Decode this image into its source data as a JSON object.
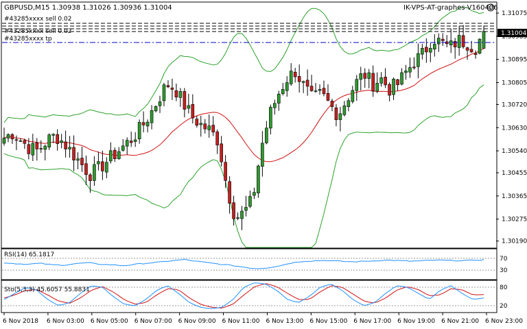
{
  "window": {
    "symbol_info": "GBPUSD,M15  1.30938 1.31026 1.30936 1.31004",
    "expert_name": "IK-VPS-AT-graphes-V160406",
    "smiley_icon": "smiley-face-icon"
  },
  "order_labels": [
    "#43285xxxx sell 0.02",
    "#43285xxxx tp"
  ],
  "price_tag": "1.31004",
  "colors": {
    "bull": "#2f9a2f",
    "bear": "#c62020",
    "ma_red": "#d01010",
    "bands_green": "#2aa12a",
    "rsi_line": "#1e90ff",
    "sto_main": "#1e90ff",
    "sto_signal": "#d01010",
    "order_line": "#0000aa",
    "tp_line": "#0000cc"
  },
  "rsi": {
    "label": "RSI(14) 65.1817",
    "levels": [
      70,
      30
    ],
    "value": 65.1817
  },
  "stochastic": {
    "label": "Sto(5,3,3) 45.6057 55.8831",
    "levels": [
      80,
      20
    ],
    "main": 45.6057,
    "signal": 55.8831
  },
  "chart_data": {
    "type": "candlestick",
    "timeframe": "M15",
    "y_ticks": [
      "1.31075",
      "1.30985",
      "1.30895",
      "1.30805",
      "1.30720",
      "1.30630",
      "1.30540",
      "1.30455",
      "1.30365",
      "1.30275",
      "1.30190"
    ],
    "ylim": [
      1.30165,
      1.31115
    ],
    "x_ticks": [
      "6 Nov 2018",
      "6 Nov 03:00",
      "6 Nov 05:00",
      "6 Nov 07:00",
      "6 Nov 09:00",
      "6 Nov 11:00",
      "6 Nov 13:00",
      "6 Nov 15:00",
      "6 Nov 17:00",
      "6 Nov 19:00",
      "6 Nov 21:00",
      "6 Nov 23:00"
    ],
    "close_path": [
      1.3059,
      1.3061,
      1.3058,
      1.3055,
      1.3054,
      1.3058,
      1.306,
      1.3057,
      1.3053,
      1.3049,
      1.3045,
      1.3047,
      1.305,
      1.3053,
      1.3056,
      1.3059,
      1.3063,
      1.3068,
      1.3074,
      1.308,
      1.3078,
      1.3072,
      1.3067,
      1.3064,
      1.3062,
      1.3058,
      1.304,
      1.3028,
      1.303,
      1.3035,
      1.3055,
      1.3068,
      1.3076,
      1.3082,
      1.3085,
      1.3079,
      1.3074,
      1.3076,
      1.3072,
      1.3068,
      1.3074,
      1.308,
      1.3084,
      1.308,
      1.3082,
      1.3078,
      1.308,
      1.3085,
      1.3089,
      1.3092,
      1.3098,
      1.3096,
      1.3094,
      1.3097,
      1.3096,
      1.3094,
      1.31
    ],
    "order_price": 1.31004,
    "tp_price": 1.30975,
    "rsi_path": [
      55,
      52,
      50,
      53,
      48,
      47,
      52,
      55,
      50,
      48,
      45,
      50,
      54,
      57,
      62,
      66,
      60,
      55,
      50,
      46,
      40,
      35,
      38,
      45,
      55,
      60,
      62,
      63,
      60,
      58,
      60,
      62,
      64,
      62,
      60,
      62,
      64,
      63,
      62,
      63,
      65
    ],
    "sto_main_path": [
      40,
      60,
      80,
      70,
      40,
      20,
      30,
      60,
      85,
      80,
      50,
      25,
      20,
      40,
      70,
      85,
      60,
      30,
      15,
      10,
      15,
      40,
      80,
      95,
      90,
      70,
      40,
      30,
      50,
      80,
      90,
      70,
      40,
      20,
      30,
      60,
      85,
      80,
      60,
      40,
      70,
      85,
      60,
      40,
      45
    ],
    "sto_signal_path": [
      45,
      55,
      70,
      72,
      55,
      35,
      28,
      45,
      70,
      82,
      65,
      40,
      25,
      30,
      55,
      75,
      72,
      45,
      25,
      15,
      12,
      25,
      55,
      82,
      92,
      82,
      60,
      40,
      40,
      65,
      85,
      80,
      58,
      35,
      28,
      45,
      70,
      82,
      72,
      52,
      55,
      75,
      72,
      55,
      56
    ]
  }
}
